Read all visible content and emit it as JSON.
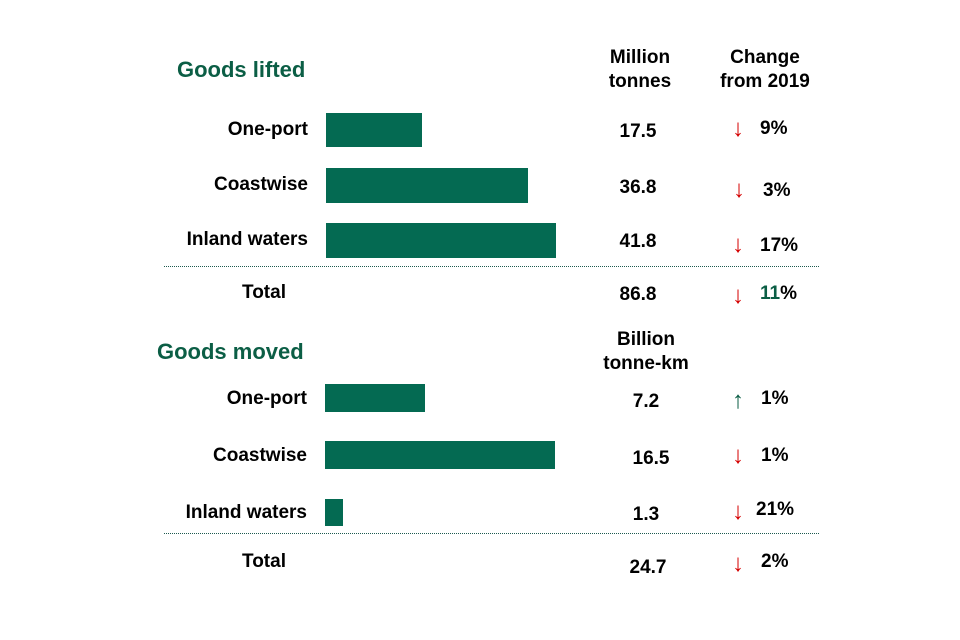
{
  "colors": {
    "bar": "#046a52",
    "title": "#0b5e45",
    "down": "#d40000",
    "up": "#0b5e45"
  },
  "chart_data": [
    {
      "type": "bar",
      "title": "Goods lifted",
      "value_header": "Million tonnes",
      "value_header_lines": [
        "Million",
        "tonnes"
      ],
      "change_header_lines": [
        "Change",
        "from 2019"
      ],
      "categories": [
        "One-port",
        "Coastwise",
        "Inland waters"
      ],
      "values": [
        17.5,
        36.8,
        41.8
      ],
      "value_labels": [
        "17.5",
        "36.8",
        "41.8"
      ],
      "changes": [
        {
          "dir": "down",
          "arrow": "↓",
          "text": "9%"
        },
        {
          "dir": "down",
          "arrow": "↓",
          "text": "3%"
        },
        {
          "dir": "down",
          "arrow": "↓",
          "text": "17%"
        }
      ],
      "total": {
        "label": "Total",
        "value": "86.8",
        "arrow": "↓",
        "dir": "down",
        "change_num": "11",
        "change_pct": "%"
      },
      "xlim": [
        0,
        41.8
      ]
    },
    {
      "type": "bar",
      "title": "Goods moved",
      "value_header": "Billion tonne-km",
      "value_header_lines": [
        "Billion",
        "tonne-km"
      ],
      "categories": [
        "One-port",
        "Coastwise",
        "Inland waters"
      ],
      "values": [
        7.2,
        16.5,
        1.3
      ],
      "value_labels": [
        "7.2",
        "16.5",
        "1.3"
      ],
      "changes": [
        {
          "dir": "up",
          "arrow": "↑",
          "text": "1%"
        },
        {
          "dir": "down",
          "arrow": "↓",
          "text": "1%"
        },
        {
          "dir": "down",
          "arrow": "↓",
          "text": "21%"
        }
      ],
      "total": {
        "label": "Total",
        "value": "24.7",
        "arrow": "↓",
        "dir": "down",
        "change_text": "2%"
      },
      "xlim": [
        0,
        16.5
      ]
    }
  ]
}
